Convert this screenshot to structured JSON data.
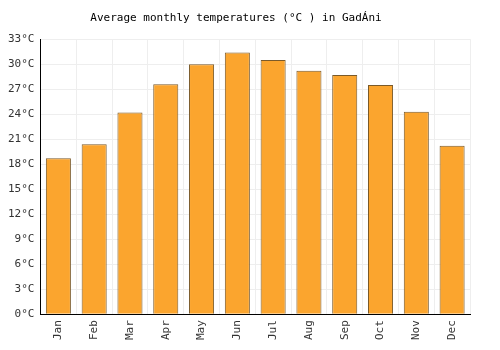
{
  "chart_data": {
    "type": "bar",
    "title": "Average monthly temperatures (°C ) in GadÁni",
    "categories": [
      "Jan",
      "Feb",
      "Mar",
      "Apr",
      "May",
      "Jun",
      "Jul",
      "Aug",
      "Sep",
      "Oct",
      "Nov",
      "Dec"
    ],
    "values": [
      18.7,
      20.4,
      24.2,
      27.6,
      30.0,
      31.4,
      30.5,
      29.2,
      28.7,
      27.5,
      24.3,
      20.2
    ],
    "color": "#fba52e",
    "ylim": [
      0,
      33
    ],
    "yticks": [
      {
        "value": 0,
        "label": "0°C"
      },
      {
        "value": 3,
        "label": "3°C"
      },
      {
        "value": 6,
        "label": "6°C"
      },
      {
        "value": 9,
        "label": "9°C"
      },
      {
        "value": 12,
        "label": "12°C"
      },
      {
        "value": 15,
        "label": "15°C"
      },
      {
        "value": 18,
        "label": "18°C"
      },
      {
        "value": 21,
        "label": "21°C"
      },
      {
        "value": 24,
        "label": "24°C"
      },
      {
        "value": 27,
        "label": "27°C"
      },
      {
        "value": 30,
        "label": "30°C"
      },
      {
        "value": 33,
        "label": "33°C"
      }
    ],
    "grid": true
  }
}
